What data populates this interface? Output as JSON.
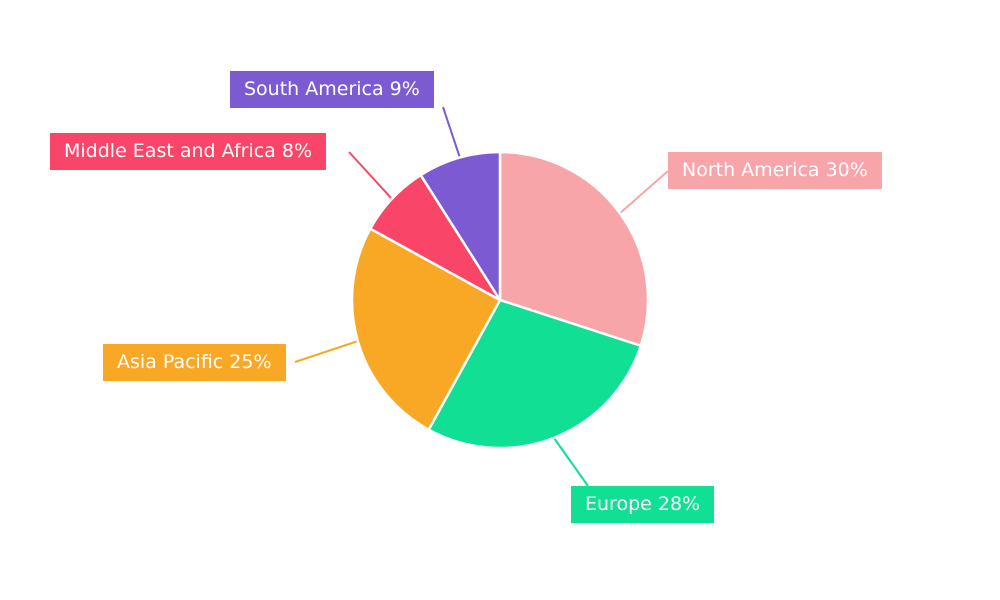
{
  "chart_data": {
    "type": "pie",
    "title": "",
    "legend_position": "none",
    "label_style": "callout-boxes-with-leader-lines",
    "start_angle_deg": 0,
    "direction": "clockwise",
    "categories": [
      "North America",
      "Europe",
      "Asia Pacific",
      "Middle East and Africa",
      "South America"
    ],
    "values": [
      30,
      28,
      25,
      8,
      9
    ],
    "unit": "%",
    "slices": [
      {
        "label": "North America",
        "value": 30,
        "display": "North America 30%",
        "color": "#F8A5AA"
      },
      {
        "label": "Europe",
        "value": 28,
        "display": "Europe 28%",
        "color": "#10DF94"
      },
      {
        "label": "Asia Pacific",
        "value": 25,
        "display": "Asia Pacific 25%",
        "color": "#F9A825"
      },
      {
        "label": "Middle East and Africa",
        "value": 8,
        "display": "Middle East and Africa 8%",
        "color": "#F94568"
      },
      {
        "label": "South America",
        "value": 9,
        "display": "South America 9%",
        "color": "#7C5BD2"
      }
    ]
  }
}
